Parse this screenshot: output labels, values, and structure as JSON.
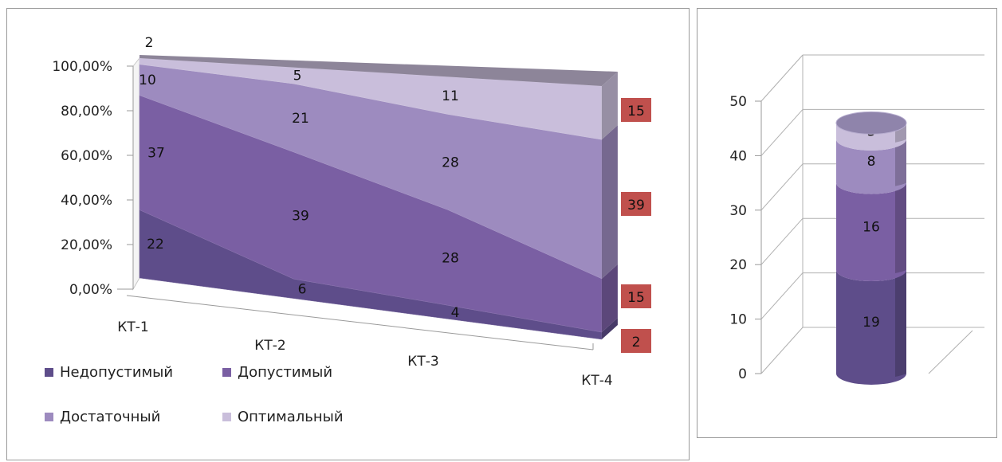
{
  "chart_data": [
    {
      "type": "area",
      "stacked_percent": true,
      "three_d": true,
      "categories": [
        "КТ-1",
        "КТ-2",
        "КТ-3",
        "КТ-4"
      ],
      "y_ticks": [
        "0,00%",
        "20,00%",
        "40,00%",
        "60,00%",
        "80,00%",
        "100,00%"
      ],
      "ylim": [
        0,
        100
      ],
      "series": [
        {
          "name": "Недопустимый",
          "color": "#5e4d8a",
          "values": [
            22,
            6,
            4,
            2
          ]
        },
        {
          "name": "Допустимый",
          "color": "#7a5fa3",
          "values": [
            37,
            39,
            28,
            15
          ]
        },
        {
          "name": "Достаточный",
          "color": "#9d8bbf",
          "values": [
            10,
            21,
            28,
            39
          ]
        },
        {
          "name": "Оптимальный",
          "color": "#c9bedb",
          "values": [
            2,
            5,
            11,
            15
          ]
        }
      ],
      "last_point_label_color": "#c0504d",
      "legend": "bottom-left"
    },
    {
      "type": "bar",
      "stacked": true,
      "shape": "cylinder",
      "three_d": true,
      "ylim": [
        0,
        50
      ],
      "y_ticks": [
        "0",
        "10",
        "20",
        "30",
        "40",
        "50"
      ],
      "series": [
        {
          "name": "Недопустимый",
          "color": "#5e4d8a",
          "value": 19
        },
        {
          "name": "Допустимый",
          "color": "#7a5fa3",
          "value": 16
        },
        {
          "name": "Достаточный",
          "color": "#9d8bbf",
          "value": 8
        },
        {
          "name": "Оптимальный",
          "color": "#c9bedb",
          "value": 3
        }
      ]
    }
  ]
}
